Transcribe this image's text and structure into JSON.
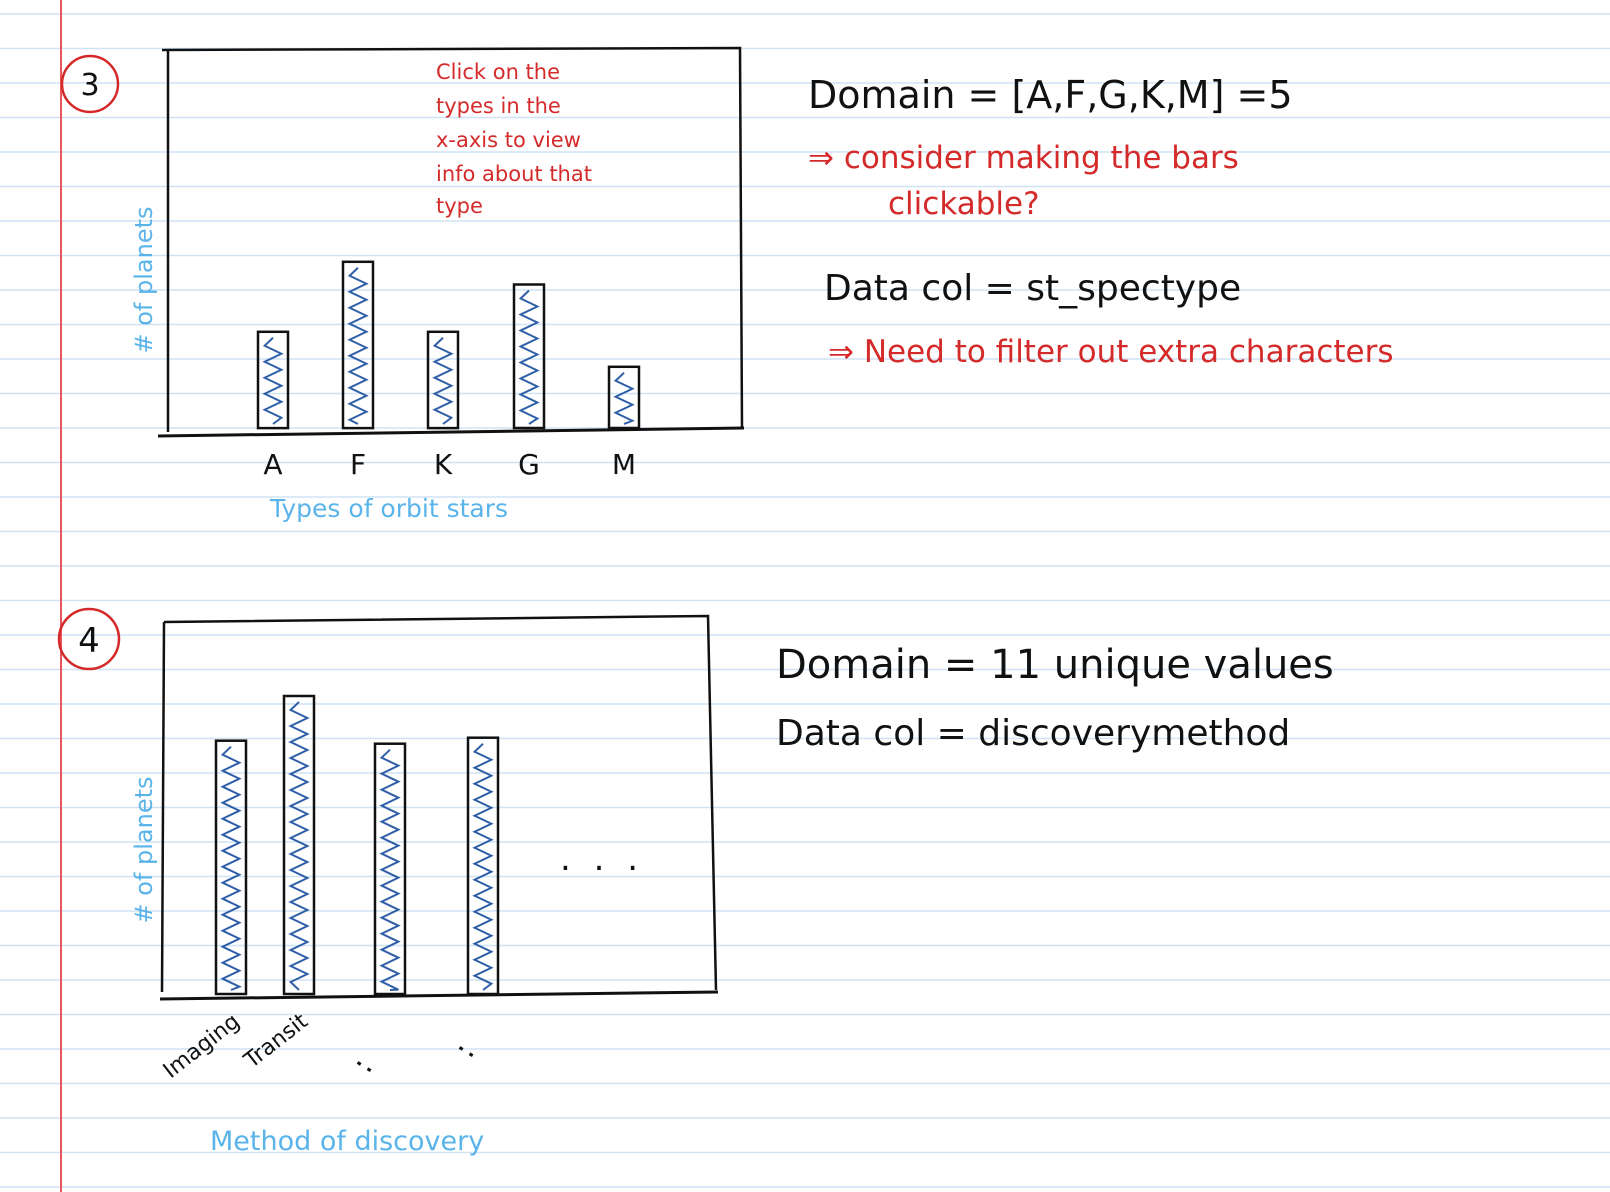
{
  "colors": {
    "rule_line": "#cfe3f4",
    "margin_line": "#e8565c",
    "ink": "#111111",
    "annotation_red": "#d42a2a",
    "axis_label_blue": "#5ab4ea",
    "scribble_blue": "#2f5fa6"
  },
  "sketch3": {
    "number": "3",
    "annotation": [
      "Click on the",
      "types in the",
      "x-axis to view",
      "info about that",
      "type"
    ],
    "y_label": "# of planets",
    "x_label": "Types of orbit stars",
    "domain": "Domain = [A,F,G,K,M] =5",
    "note1": [
      "⇒ consider making the bars",
      "clickable?"
    ],
    "data_col": "Data col = st_spectype",
    "note2": "⇒ Need to filter out extra characters"
  },
  "sketch4": {
    "number": "4",
    "y_label": "# of planets",
    "x_label": "Method of discovery",
    "ellipsis": ". . .",
    "dots": ":",
    "domain": "Domain = 11 unique values",
    "data_col": "Data col = discoverymethod"
  },
  "chart_data": [
    {
      "type": "bar",
      "categories": [
        "A",
        "F",
        "K",
        "G",
        "M"
      ],
      "values": [
        0.55,
        0.95,
        0.55,
        0.82,
        0.35
      ],
      "xlabel": "Types of orbit stars",
      "ylabel": "# of planets"
    },
    {
      "type": "bar",
      "categories": [
        "Imaging",
        "Transit",
        "",
        ""
      ],
      "values": [
        0.85,
        1.0,
        0.84,
        0.86
      ],
      "xlabel": "Method of discovery",
      "ylabel": "# of planets"
    }
  ]
}
